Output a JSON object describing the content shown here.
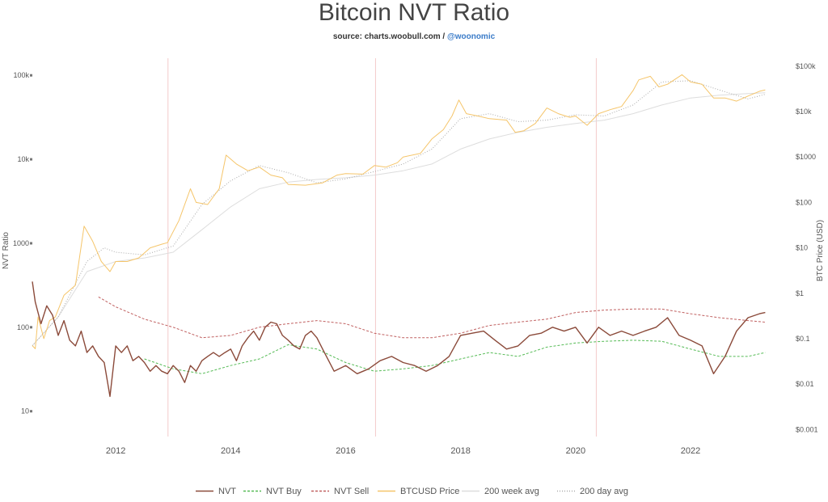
{
  "chart_data": {
    "type": "line",
    "title": "Bitcoin NVT Ratio",
    "subtitle": {
      "prefix": "source: charts.woobull.com / ",
      "link": "@woonomic"
    },
    "ylabel_left": "NVT Ratio",
    "ylabel_right": "BTC Price (USD)",
    "y_left_scale": "log",
    "y_right_scale": "log",
    "y_left_range": [
      5,
      160000
    ],
    "y_right_range": [
      0.0007,
      150000
    ],
    "y_left_ticks": [
      {
        "value": 10,
        "label": "10"
      },
      {
        "value": 100,
        "label": "100"
      },
      {
        "value": 1000,
        "label": "1000"
      },
      {
        "value": 10000,
        "label": "10k"
      },
      {
        "value": 100000,
        "label": "100k"
      }
    ],
    "y_right_ticks": [
      {
        "value": 0.001,
        "label": "$0.001"
      },
      {
        "value": 0.01,
        "label": "$0.01"
      },
      {
        "value": 0.1,
        "label": "$0.1"
      },
      {
        "value": 1,
        "label": "$1"
      },
      {
        "value": 10,
        "label": "$10"
      },
      {
        "value": 100,
        "label": "$100"
      },
      {
        "value": 1000,
        "label": "$1000"
      },
      {
        "value": 10000,
        "label": "$10k"
      },
      {
        "value": 100000,
        "label": "$100k"
      }
    ],
    "x_range": [
      2010.55,
      2023.35
    ],
    "x_ticks": [
      {
        "value": 2012,
        "label": "2012"
      },
      {
        "value": 2014,
        "label": "2014"
      },
      {
        "value": 2016,
        "label": "2016"
      },
      {
        "value": 2018,
        "label": "2018"
      },
      {
        "value": 2020,
        "label": "2020"
      },
      {
        "value": 2022,
        "label": "2022"
      }
    ],
    "halving_lines": [
      2012.91,
      2016.52,
      2020.36
    ],
    "grid": false,
    "legend_position": "bottom",
    "series": [
      {
        "name": "NVT",
        "axis": "left",
        "style": "solid",
        "color": "#8b4a3a",
        "points": [
          [
            2010.55,
            350
          ],
          [
            2010.6,
            200
          ],
          [
            2010.7,
            110
          ],
          [
            2010.8,
            180
          ],
          [
            2010.9,
            140
          ],
          [
            2011.0,
            80
          ],
          [
            2011.1,
            120
          ],
          [
            2011.2,
            70
          ],
          [
            2011.3,
            60
          ],
          [
            2011.4,
            90
          ],
          [
            2011.5,
            50
          ],
          [
            2011.6,
            60
          ],
          [
            2011.7,
            45
          ],
          [
            2011.8,
            38
          ],
          [
            2011.9,
            15
          ],
          [
            2012.0,
            60
          ],
          [
            2012.1,
            50
          ],
          [
            2012.2,
            60
          ],
          [
            2012.3,
            40
          ],
          [
            2012.4,
            45
          ],
          [
            2012.5,
            38
          ],
          [
            2012.6,
            30
          ],
          [
            2012.7,
            35
          ],
          [
            2012.8,
            30
          ],
          [
            2012.9,
            28
          ],
          [
            2013.0,
            35
          ],
          [
            2013.1,
            30
          ],
          [
            2013.2,
            22
          ],
          [
            2013.3,
            35
          ],
          [
            2013.4,
            30
          ],
          [
            2013.5,
            40
          ],
          [
            2013.6,
            45
          ],
          [
            2013.7,
            50
          ],
          [
            2013.8,
            45
          ],
          [
            2013.9,
            50
          ],
          [
            2014.0,
            55
          ],
          [
            2014.1,
            40
          ],
          [
            2014.2,
            60
          ],
          [
            2014.3,
            75
          ],
          [
            2014.4,
            90
          ],
          [
            2014.5,
            70
          ],
          [
            2014.6,
            100
          ],
          [
            2014.7,
            115
          ],
          [
            2014.8,
            110
          ],
          [
            2014.9,
            80
          ],
          [
            2015.0,
            70
          ],
          [
            2015.1,
            60
          ],
          [
            2015.2,
            55
          ],
          [
            2015.3,
            80
          ],
          [
            2015.4,
            90
          ],
          [
            2015.5,
            75
          ],
          [
            2015.6,
            55
          ],
          [
            2015.8,
            30
          ],
          [
            2016.0,
            35
          ],
          [
            2016.2,
            28
          ],
          [
            2016.4,
            32
          ],
          [
            2016.6,
            40
          ],
          [
            2016.8,
            45
          ],
          [
            2017.0,
            38
          ],
          [
            2017.2,
            35
          ],
          [
            2017.4,
            30
          ],
          [
            2017.6,
            35
          ],
          [
            2017.8,
            45
          ],
          [
            2018.0,
            80
          ],
          [
            2018.2,
            85
          ],
          [
            2018.4,
            90
          ],
          [
            2018.6,
            70
          ],
          [
            2018.8,
            55
          ],
          [
            2019.0,
            60
          ],
          [
            2019.2,
            80
          ],
          [
            2019.4,
            85
          ],
          [
            2019.6,
            100
          ],
          [
            2019.8,
            90
          ],
          [
            2020.0,
            100
          ],
          [
            2020.2,
            65
          ],
          [
            2020.4,
            100
          ],
          [
            2020.6,
            80
          ],
          [
            2020.8,
            90
          ],
          [
            2021.0,
            80
          ],
          [
            2021.2,
            90
          ],
          [
            2021.4,
            100
          ],
          [
            2021.6,
            130
          ],
          [
            2021.8,
            80
          ],
          [
            2022.0,
            70
          ],
          [
            2022.2,
            60
          ],
          [
            2022.4,
            28
          ],
          [
            2022.6,
            45
          ],
          [
            2022.8,
            90
          ],
          [
            2023.0,
            130
          ],
          [
            2023.2,
            145
          ],
          [
            2023.3,
            150
          ]
        ]
      },
      {
        "name": "NVT Buy",
        "axis": "left",
        "style": "dashed",
        "color": "#55bb55",
        "points": [
          [
            2012.5,
            42
          ],
          [
            2013.0,
            32
          ],
          [
            2013.5,
            28
          ],
          [
            2014.0,
            35
          ],
          [
            2014.5,
            42
          ],
          [
            2015.0,
            62
          ],
          [
            2015.5,
            55
          ],
          [
            2016.0,
            38
          ],
          [
            2016.5,
            30
          ],
          [
            2017.0,
            32
          ],
          [
            2017.5,
            35
          ],
          [
            2018.0,
            42
          ],
          [
            2018.5,
            50
          ],
          [
            2019.0,
            45
          ],
          [
            2019.5,
            58
          ],
          [
            2020.0,
            65
          ],
          [
            2020.5,
            68
          ],
          [
            2021.0,
            70
          ],
          [
            2021.5,
            68
          ],
          [
            2022.0,
            55
          ],
          [
            2022.5,
            45
          ],
          [
            2023.0,
            45
          ],
          [
            2023.3,
            50
          ]
        ]
      },
      {
        "name": "NVT Sell",
        "axis": "left",
        "style": "dashed",
        "color": "#c06060",
        "points": [
          [
            2011.7,
            230
          ],
          [
            2012.0,
            175
          ],
          [
            2012.5,
            125
          ],
          [
            2013.0,
            100
          ],
          [
            2013.5,
            75
          ],
          [
            2014.0,
            80
          ],
          [
            2014.5,
            100
          ],
          [
            2015.0,
            110
          ],
          [
            2015.5,
            120
          ],
          [
            2016.0,
            110
          ],
          [
            2016.5,
            85
          ],
          [
            2017.0,
            75
          ],
          [
            2017.5,
            75
          ],
          [
            2018.0,
            85
          ],
          [
            2018.5,
            105
          ],
          [
            2019.0,
            115
          ],
          [
            2019.5,
            125
          ],
          [
            2020.0,
            150
          ],
          [
            2020.5,
            160
          ],
          [
            2021.0,
            165
          ],
          [
            2021.5,
            165
          ],
          [
            2022.0,
            145
          ],
          [
            2022.5,
            130
          ],
          [
            2023.0,
            120
          ],
          [
            2023.3,
            115
          ]
        ]
      },
      {
        "name": "BTCUSD Price",
        "axis": "right",
        "style": "solid",
        "color": "#f5c56a",
        "points": [
          [
            2010.55,
            0.07
          ],
          [
            2010.6,
            0.06
          ],
          [
            2010.65,
            0.3
          ],
          [
            2010.75,
            0.1
          ],
          [
            2010.85,
            0.25
          ],
          [
            2010.95,
            0.3
          ],
          [
            2011.1,
            0.9
          ],
          [
            2011.3,
            1.5
          ],
          [
            2011.45,
            30
          ],
          [
            2011.6,
            14
          ],
          [
            2011.75,
            5
          ],
          [
            2011.9,
            3
          ],
          [
            2012.0,
            5
          ],
          [
            2012.2,
            5
          ],
          [
            2012.4,
            6
          ],
          [
            2012.6,
            10
          ],
          [
            2012.8,
            12
          ],
          [
            2012.9,
            13
          ],
          [
            2013.1,
            40
          ],
          [
            2013.3,
            200
          ],
          [
            2013.4,
            100
          ],
          [
            2013.6,
            90
          ],
          [
            2013.8,
            200
          ],
          [
            2013.92,
            1100
          ],
          [
            2014.1,
            700
          ],
          [
            2014.3,
            500
          ],
          [
            2014.5,
            600
          ],
          [
            2014.7,
            400
          ],
          [
            2014.9,
            350
          ],
          [
            2015.0,
            250
          ],
          [
            2015.3,
            240
          ],
          [
            2015.6,
            270
          ],
          [
            2015.85,
            400
          ],
          [
            2016.0,
            430
          ],
          [
            2016.3,
            420
          ],
          [
            2016.5,
            650
          ],
          [
            2016.7,
            600
          ],
          [
            2016.9,
            750
          ],
          [
            2017.0,
            1000
          ],
          [
            2017.3,
            1200
          ],
          [
            2017.5,
            2500
          ],
          [
            2017.7,
            4000
          ],
          [
            2017.85,
            8000
          ],
          [
            2017.97,
            18000
          ],
          [
            2018.1,
            9000
          ],
          [
            2018.3,
            8000
          ],
          [
            2018.5,
            7000
          ],
          [
            2018.8,
            6500
          ],
          [
            2018.95,
            3500
          ],
          [
            2019.1,
            3800
          ],
          [
            2019.3,
            5500
          ],
          [
            2019.5,
            12000
          ],
          [
            2019.7,
            9000
          ],
          [
            2019.9,
            7500
          ],
          [
            2020.0,
            8000
          ],
          [
            2020.2,
            5000
          ],
          [
            2020.4,
            9000
          ],
          [
            2020.6,
            11000
          ],
          [
            2020.8,
            13000
          ],
          [
            2021.0,
            29000
          ],
          [
            2021.1,
            50000
          ],
          [
            2021.3,
            60000
          ],
          [
            2021.45,
            35000
          ],
          [
            2021.6,
            40000
          ],
          [
            2021.85,
            65000
          ],
          [
            2022.0,
            45000
          ],
          [
            2022.2,
            40000
          ],
          [
            2022.4,
            20000
          ],
          [
            2022.6,
            20000
          ],
          [
            2022.8,
            17000
          ],
          [
            2023.0,
            22000
          ],
          [
            2023.2,
            28000
          ],
          [
            2023.3,
            30000
          ]
        ]
      },
      {
        "name": "200 week avg",
        "axis": "right",
        "style": "solid",
        "color": "#dddddd",
        "points": [
          [
            2010.55,
            0.07
          ],
          [
            2011.0,
            0.3
          ],
          [
            2011.5,
            3
          ],
          [
            2012.0,
            5
          ],
          [
            2012.5,
            6
          ],
          [
            2013.0,
            8
          ],
          [
            2013.5,
            25
          ],
          [
            2014.0,
            80
          ],
          [
            2014.5,
            200
          ],
          [
            2015.0,
            280
          ],
          [
            2015.5,
            320
          ],
          [
            2016.0,
            350
          ],
          [
            2016.5,
            400
          ],
          [
            2017.0,
            500
          ],
          [
            2017.5,
            700
          ],
          [
            2018.0,
            1500
          ],
          [
            2018.5,
            2500
          ],
          [
            2019.0,
            3500
          ],
          [
            2019.5,
            4500
          ],
          [
            2020.0,
            5500
          ],
          [
            2020.5,
            6500
          ],
          [
            2021.0,
            9000
          ],
          [
            2021.5,
            14000
          ],
          [
            2022.0,
            20000
          ],
          [
            2022.5,
            23000
          ],
          [
            2023.0,
            25000
          ],
          [
            2023.3,
            26000
          ]
        ]
      },
      {
        "name": "200 day avg",
        "axis": "right",
        "style": "dotted",
        "color": "#aaaaaa",
        "points": [
          [
            2010.55,
            0.07
          ],
          [
            2011.0,
            0.3
          ],
          [
            2011.5,
            5
          ],
          [
            2011.8,
            10
          ],
          [
            2012.0,
            8
          ],
          [
            2012.5,
            7
          ],
          [
            2013.0,
            11
          ],
          [
            2013.5,
            90
          ],
          [
            2014.0,
            300
          ],
          [
            2014.5,
            650
          ],
          [
            2015.0,
            450
          ],
          [
            2015.5,
            270
          ],
          [
            2016.0,
            330
          ],
          [
            2016.5,
            480
          ],
          [
            2017.0,
            700
          ],
          [
            2017.5,
            1500
          ],
          [
            2018.0,
            7000
          ],
          [
            2018.5,
            9000
          ],
          [
            2019.0,
            6000
          ],
          [
            2019.5,
            6500
          ],
          [
            2020.0,
            8500
          ],
          [
            2020.5,
            8000
          ],
          [
            2021.0,
            14000
          ],
          [
            2021.5,
            45000
          ],
          [
            2022.0,
            48000
          ],
          [
            2022.5,
            30000
          ],
          [
            2023.0,
            19000
          ],
          [
            2023.3,
            24000
          ]
        ]
      }
    ]
  }
}
